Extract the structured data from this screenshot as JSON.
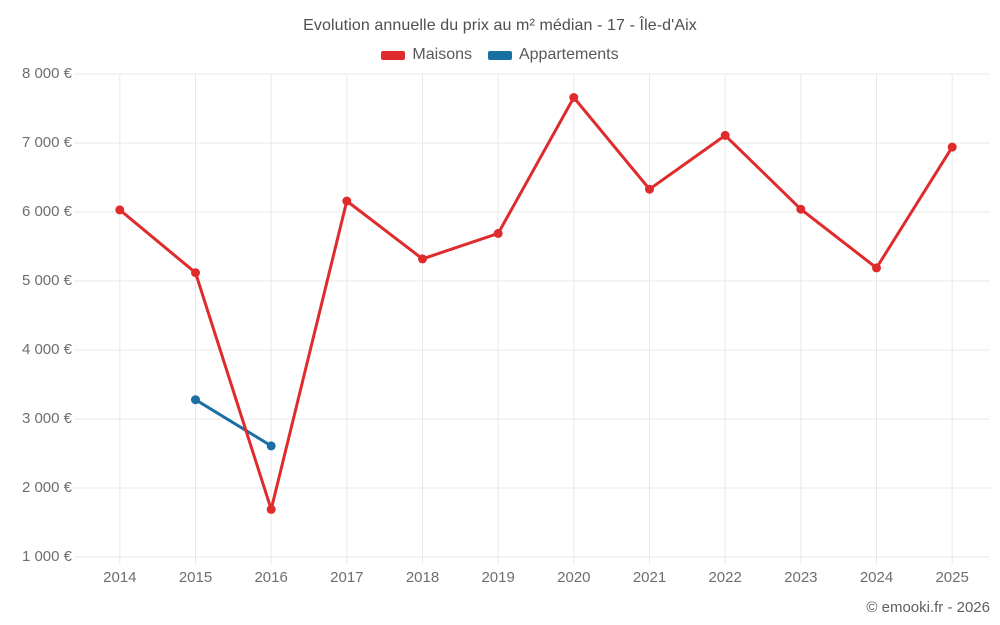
{
  "chart_data": {
    "type": "line",
    "title": "Evolution annuelle du prix au m² médian - 17 - Île-d'Aix",
    "categories": [
      "2014",
      "2015",
      "2016",
      "2017",
      "2018",
      "2019",
      "2020",
      "2021",
      "2022",
      "2023",
      "2024",
      "2025"
    ],
    "series": [
      {
        "name": "Maisons",
        "color": "#e02b2d",
        "values": [
          6030,
          5120,
          1690,
          6160,
          5320,
          5690,
          7660,
          6330,
          7110,
          6040,
          5190,
          6940
        ]
      },
      {
        "name": "Appartements",
        "color": "#1a6fa3",
        "values": [
          null,
          3280,
          2610,
          null,
          null,
          null,
          null,
          null,
          null,
          null,
          null,
          null
        ]
      }
    ],
    "ylim": [
      1000,
      8000
    ],
    "ytick_values": [
      1000,
      2000,
      3000,
      4000,
      5000,
      6000,
      7000,
      8000
    ],
    "ytick_labels": [
      "1 000 €",
      "2 000 €",
      "3 000 €",
      "4 000 €",
      "5 000 €",
      "6 000 €",
      "7 000 €",
      "8 000 €"
    ],
    "grid": true,
    "legend_position": "top",
    "grid_color": "#e8e8e8"
  },
  "footer": {
    "copyright": "© emooki.fr - 2026"
  }
}
